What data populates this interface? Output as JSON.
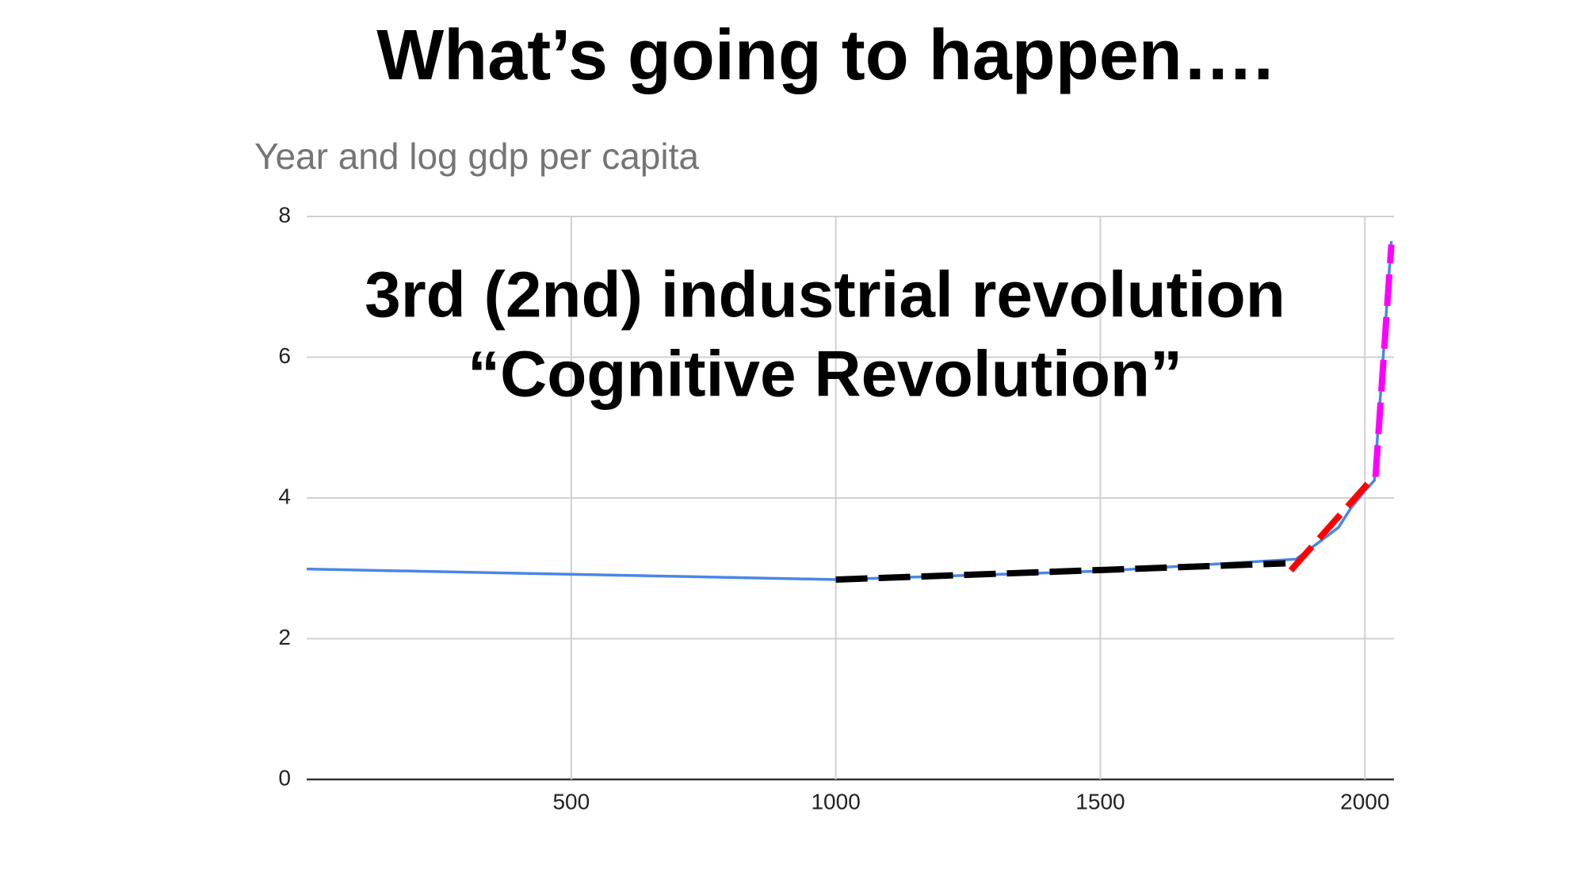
{
  "chart_data": {
    "type": "line",
    "page_title": "What’s going to happen….",
    "title": "Year and log gdp per capita",
    "annotations": [
      "3rd (2nd) industrial revolution",
      "“Cognitive Revolution”"
    ],
    "x": [
      0,
      1000,
      1500,
      1870,
      1913,
      1950,
      1973,
      2000,
      2018,
      2050
    ],
    "series": [
      {
        "color": "#4a86e8",
        "values": [
          2.99,
          2.84,
          2.96,
          3.13,
          3.37,
          3.58,
          3.85,
          4.1,
          4.25,
          7.65
        ]
      }
    ],
    "trend_lines": [
      {
        "color": "#000000",
        "x": [
          1000,
          1850
        ],
        "values": [
          2.84,
          3.07
        ]
      },
      {
        "color": "#ff0000",
        "x": [
          1860,
          2005
        ],
        "values": [
          2.97,
          4.2
        ]
      },
      {
        "color": "#ff00ff",
        "x": [
          2020,
          2050
        ],
        "values": [
          4.3,
          7.6
        ]
      }
    ],
    "xlim": [
      0,
      2055
    ],
    "xticks": [
      500,
      1000,
      1500,
      2000
    ],
    "ylim": [
      0,
      8
    ],
    "yticks": [
      0,
      2,
      4,
      6,
      8
    ],
    "grid": true
  }
}
